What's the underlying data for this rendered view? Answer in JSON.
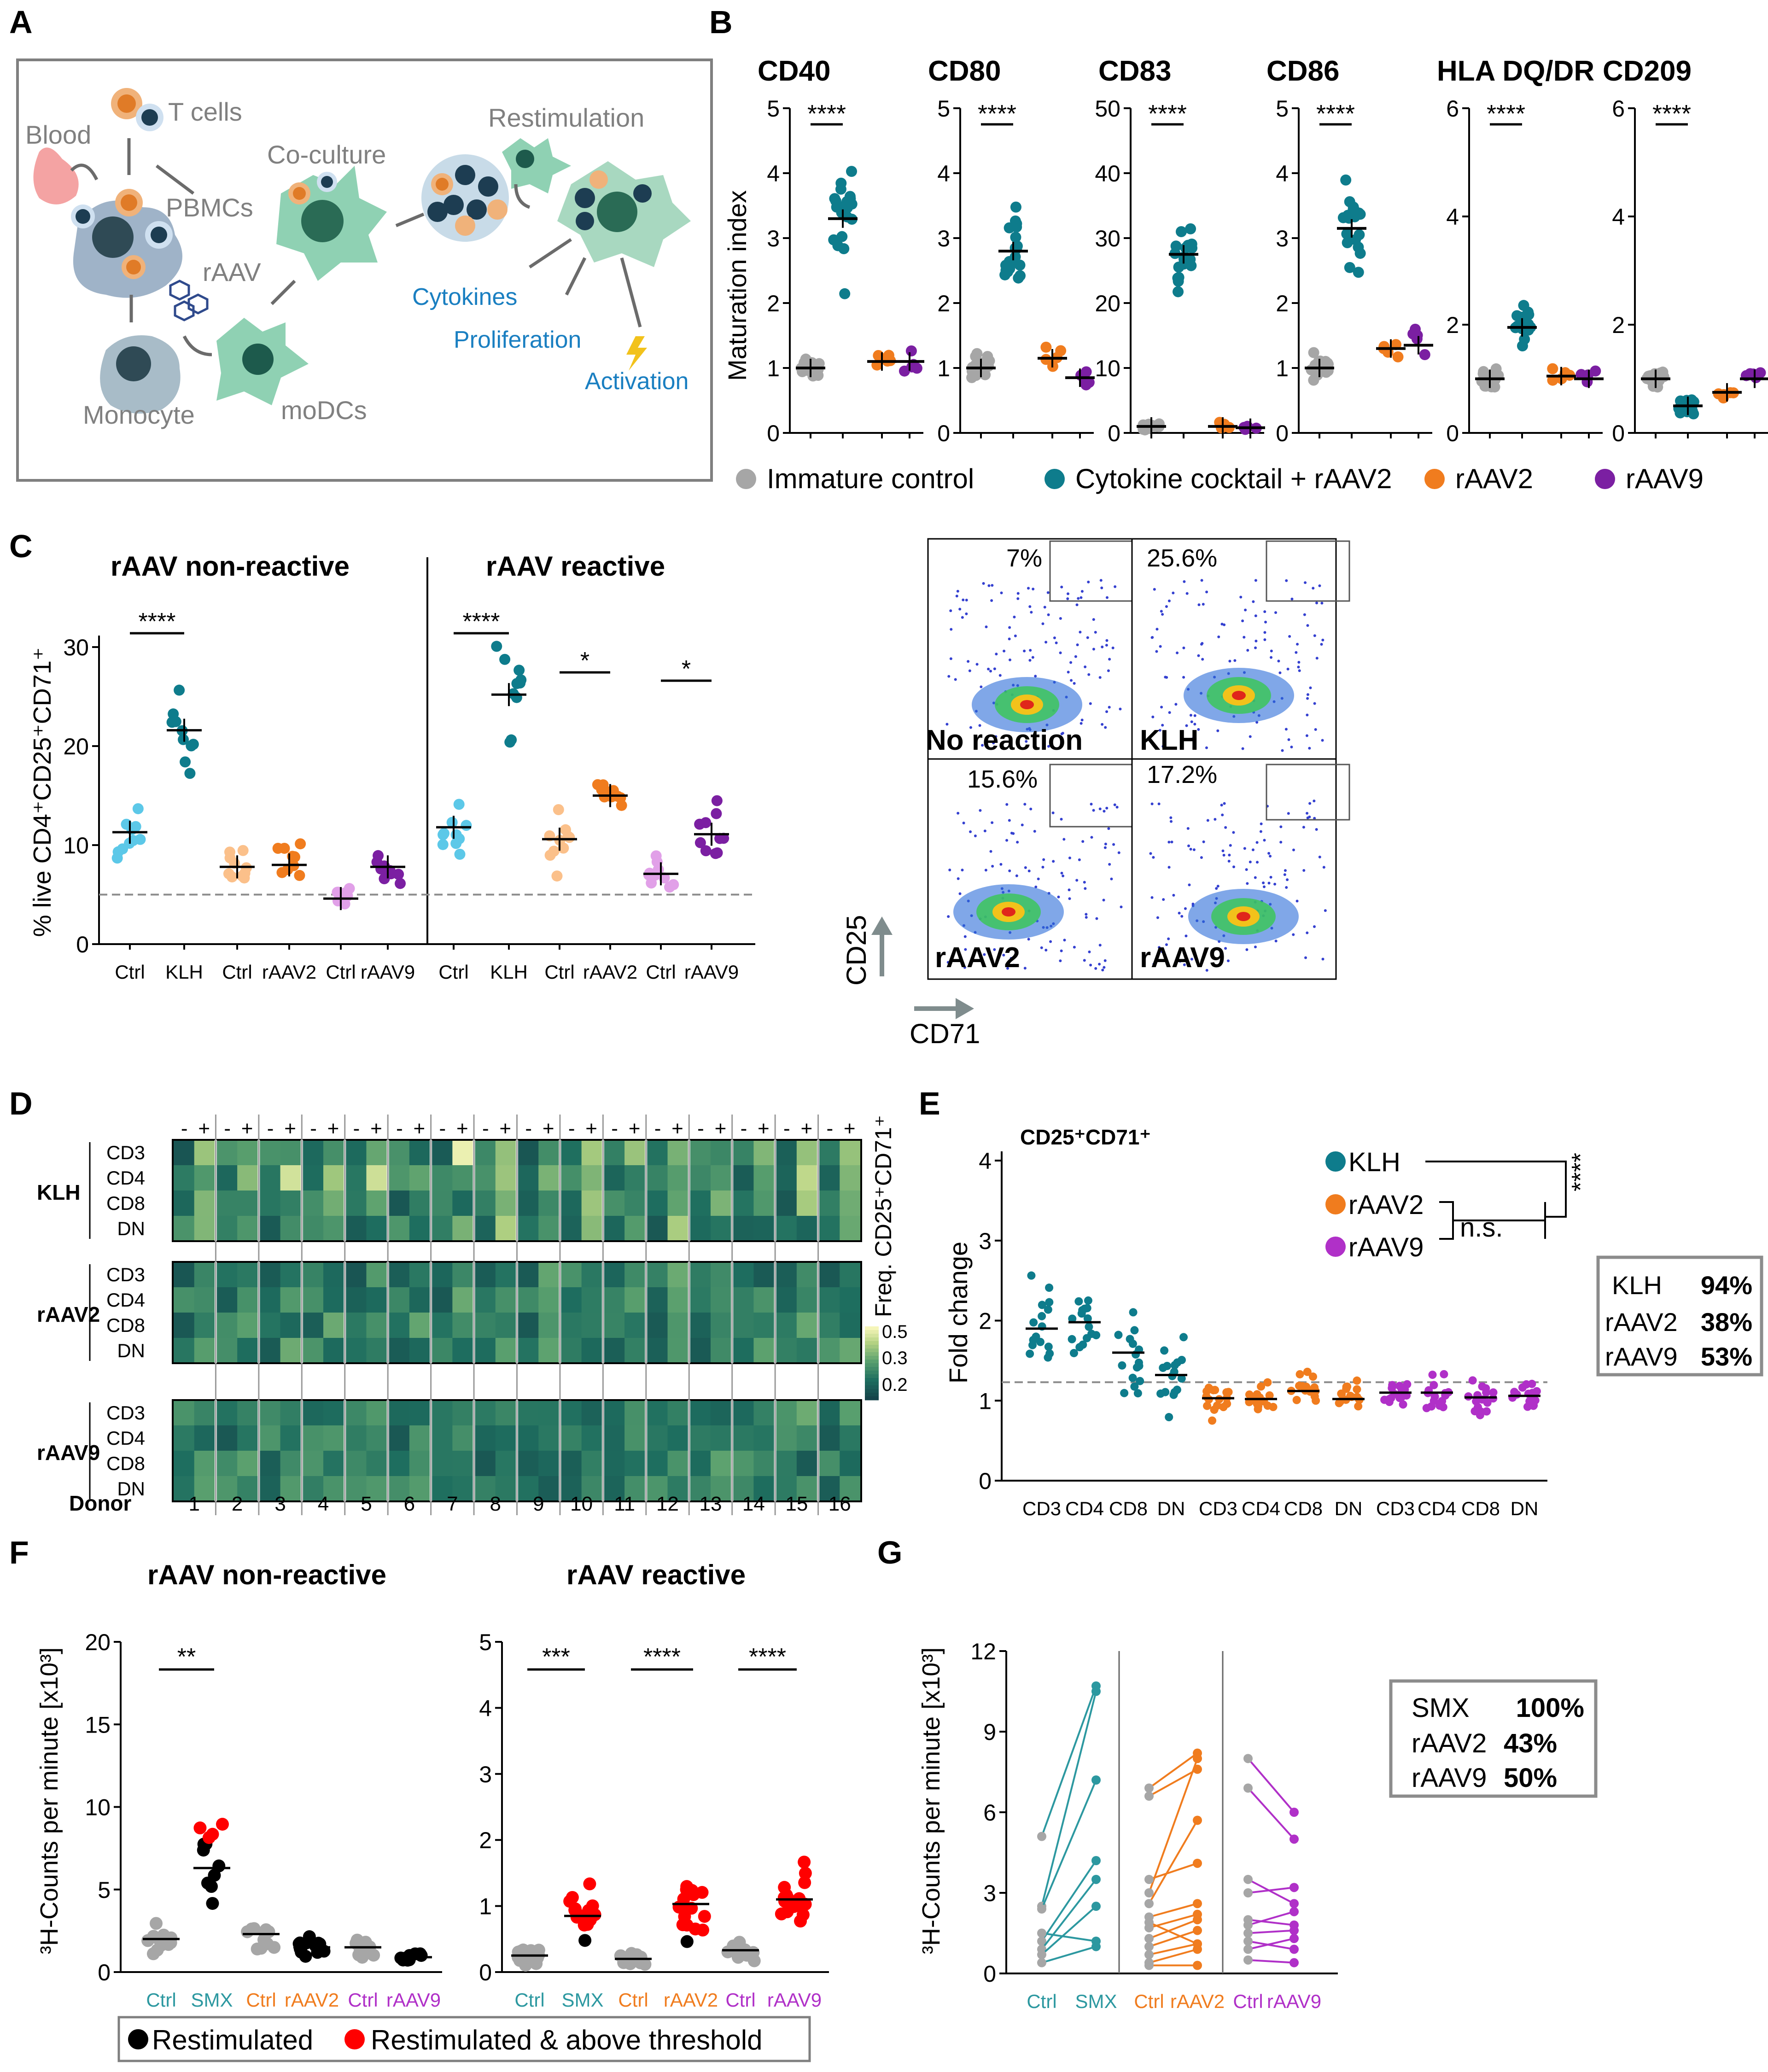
{
  "panel_letters": [
    "A",
    "B",
    "C",
    "D",
    "E",
    "F",
    "G"
  ],
  "colors": {
    "immature": "#a6a6a6",
    "cocktail": "#0e7c8c",
    "raav2": "#f07c1e",
    "raav9": "#7b1fa2",
    "ctrl_c": "#5cc8e8",
    "raav2_ctrl": "#fbc08a",
    "raav9_ctrl": "#e1a0e8",
    "restim": "#000000",
    "above": "#ff0000",
    "teal_text": "#2c98a0",
    "orange_text": "#f07c1e",
    "purple_text": "#b030c8"
  },
  "panelA": {
    "labels": {
      "blood": "Blood",
      "tcells": "T cells",
      "pbmcs": "PBMCs",
      "coculture": "Co-culture",
      "restimulation": "Restimulation",
      "raav": "rAAV",
      "monocyte": "Monocyte",
      "modcs": "moDCs",
      "cytokines": "Cytokines",
      "proliferation": "Proliferation",
      "activation": "Activation"
    }
  },
  "panelB": {
    "ylabel": "Maturation index",
    "legend": [
      "Immature control",
      "Cytokine cocktail + rAAV2",
      "rAAV2",
      "rAAV9"
    ],
    "significance": "****",
    "chart_data": [
      {
        "type": "scatter",
        "title": "CD40",
        "ylim": [
          0,
          5
        ],
        "yticks": [
          0,
          1,
          2,
          3,
          4,
          5
        ],
        "groups": [
          "Immature control",
          "Cytokine cocktail + rAAV2",
          "rAAV2",
          "rAAV9"
        ],
        "means": [
          1.0,
          3.3,
          1.1,
          1.1
        ]
      },
      {
        "type": "scatter",
        "title": "CD80",
        "ylim": [
          0,
          5
        ],
        "yticks": [
          0,
          1,
          2,
          3,
          4,
          5
        ],
        "groups": [
          "Immature control",
          "Cytokine cocktail + rAAV2",
          "rAAV2",
          "rAAV9"
        ],
        "means": [
          1.0,
          2.8,
          1.15,
          0.85
        ]
      },
      {
        "type": "scatter",
        "title": "CD83",
        "ylim": [
          0,
          50
        ],
        "yticks": [
          0,
          10,
          20,
          30,
          40,
          50
        ],
        "groups": [
          "Immature control",
          "Cytokine cocktail + rAAV2",
          "rAAV2",
          "rAAV9"
        ],
        "means": [
          1.0,
          27.5,
          1.0,
          0.8
        ]
      },
      {
        "type": "scatter",
        "title": "CD86",
        "ylim": [
          0,
          5
        ],
        "yticks": [
          0,
          1,
          2,
          3,
          4,
          5
        ],
        "groups": [
          "Immature control",
          "Cytokine cocktail + rAAV2",
          "rAAV2",
          "rAAV9"
        ],
        "means": [
          1.0,
          3.15,
          1.3,
          1.35
        ]
      },
      {
        "type": "scatter",
        "title": "HLA DQ/DR",
        "ylim": [
          0,
          6
        ],
        "yticks": [
          0,
          2,
          4,
          6
        ],
        "groups": [
          "Immature control",
          "Cytokine cocktail + rAAV2",
          "rAAV2",
          "rAAV9"
        ],
        "means": [
          1.0,
          1.95,
          1.05,
          1.0
        ]
      },
      {
        "type": "scatter",
        "title": "CD209",
        "ylim": [
          0,
          6
        ],
        "yticks": [
          0,
          2,
          4,
          6
        ],
        "groups": [
          "Immature control",
          "Cytokine cocktail + rAAV2",
          "rAAV2",
          "rAAV9"
        ],
        "means": [
          1.0,
          0.5,
          0.75,
          1.0
        ]
      }
    ]
  },
  "panelC": {
    "ylabel": "% live CD4⁺CD25⁺CD71⁺",
    "sub_non": "rAAV non-reactive",
    "sub_re": "rAAV reactive",
    "flow_labels": [
      "No reaction",
      "KLH",
      "rAAV2",
      "rAAV9"
    ],
    "flow_pcts": [
      "7%",
      "25.6%",
      "15.6%",
      "17.2%"
    ],
    "flow_y_axis": "CD25",
    "flow_x_axis": "CD71",
    "chart_data": {
      "type": "scatter",
      "ylim": [
        0,
        30
      ],
      "yticks": [
        0,
        10,
        20,
        30
      ],
      "threshold": 5,
      "categories": [
        "Ctrl",
        "KLH",
        "Ctrl",
        "rAAV2",
        "Ctrl",
        "rAAV9",
        "Ctrl",
        "KLH",
        "Ctrl",
        "rAAV2",
        "Ctrl",
        "rAAV9"
      ],
      "means": [
        11.3,
        21.6,
        7.8,
        8.0,
        4.6,
        7.8,
        11.8,
        25.2,
        10.6,
        15.0,
        7.1,
        11.1
      ],
      "significance": [
        "****",
        "****",
        "*",
        "*"
      ]
    }
  },
  "panelD": {
    "rows_label": [
      "KLH",
      "rAAV2",
      "rAAV9"
    ],
    "row_markers": [
      "CD3",
      "CD4",
      "CD8",
      "DN"
    ],
    "donor_label": "Donor",
    "donors": [
      "1",
      "2",
      "3",
      "4",
      "5",
      "6",
      "7",
      "8",
      "9",
      "10",
      "11",
      "12",
      "13",
      "14",
      "15",
      "16"
    ],
    "minus": "-",
    "plus": "+",
    "colorbar_title": "Freq. CD25⁺CD71⁺",
    "colorbar_ticks": [
      "0.5",
      "0.3",
      "0.2"
    ]
  },
  "panelE": {
    "title": "CD25⁺CD71⁺",
    "ylabel": "Fold change",
    "legend": [
      "KLH",
      "rAAV2",
      "rAAV9"
    ],
    "ns": "n.s.",
    "sig": "****",
    "box": [
      {
        "name": "KLH",
        "pct": "94%"
      },
      {
        "name": "rAAV2",
        "pct": "38%"
      },
      {
        "name": "rAAV9",
        "pct": "53%"
      }
    ],
    "chart_data": {
      "type": "scatter",
      "ylim": [
        0,
        4
      ],
      "yticks": [
        0,
        1,
        2,
        3,
        4
      ],
      "threshold": 1.23,
      "categories": [
        "CD3",
        "CD4",
        "CD8",
        "DN",
        "CD3",
        "CD4",
        "CD8",
        "DN",
        "CD3",
        "CD4",
        "CD8",
        "DN"
      ],
      "medians": [
        1.9,
        1.98,
        1.6,
        1.32,
        1.03,
        1.02,
        1.12,
        1.02,
        1.1,
        1.1,
        1.04,
        1.06
      ]
    }
  },
  "panelF": {
    "ylabel": "³H-Counts per minute [x10³]",
    "sub_non": "rAAV non-reactive",
    "sub_re": "rAAV reactive",
    "legend": [
      "Restimulated",
      "Restimulated & above threshold"
    ],
    "chart_data": [
      {
        "type": "scatter",
        "ylim": [
          0,
          20
        ],
        "yticks": [
          0,
          5,
          10,
          15,
          20
        ],
        "categories": [
          "Ctrl",
          "SMX",
          "Ctrl",
          "rAAV2",
          "Ctrl",
          "rAAV9"
        ],
        "medians": [
          2.0,
          6.3,
          2.3,
          1.5,
          1.5,
          0.9
        ],
        "significance": [
          "**"
        ]
      },
      {
        "type": "scatter",
        "ylim": [
          0,
          5
        ],
        "yticks": [
          0,
          1,
          2,
          3,
          4,
          5
        ],
        "categories": [
          "Ctrl",
          "SMX",
          "Ctrl",
          "rAAV2",
          "Ctrl",
          "rAAV9"
        ],
        "medians": [
          0.25,
          0.85,
          0.2,
          1.03,
          0.33,
          1.1
        ],
        "significance": [
          "***",
          "****",
          "****"
        ]
      }
    ]
  },
  "panelG": {
    "ylabel": "³H-Counts per minute [x10³]",
    "box": [
      {
        "name": "SMX",
        "pct": "100%"
      },
      {
        "name": "rAAV2",
        "pct": "43%"
      },
      {
        "name": "rAAV9",
        "pct": "50%"
      }
    ],
    "chart_data": {
      "type": "line",
      "ylim": [
        0,
        12
      ],
      "yticks": [
        0,
        3,
        6,
        9,
        12
      ],
      "categories": [
        "Ctrl",
        "SMX",
        "Ctrl",
        "rAAV2",
        "Ctrl",
        "rAAV9"
      ],
      "pairs_smx": [
        [
          5.1,
          10.7
        ],
        [
          2.5,
          10.5
        ],
        [
          2.4,
          7.2
        ],
        [
          1.2,
          4.2
        ],
        [
          0.9,
          3.5
        ],
        [
          0.7,
          2.5
        ],
        [
          1.5,
          1.2
        ],
        [
          0.4,
          1.0
        ]
      ],
      "pairs_raav2": [
        [
          6.9,
          8.2
        ],
        [
          6.6,
          7.6
        ],
        [
          3.0,
          8.0
        ],
        [
          2.6,
          5.7
        ],
        [
          2.1,
          2.6
        ],
        [
          1.7,
          2.2
        ],
        [
          1.3,
          2.0
        ],
        [
          1.0,
          1.6
        ],
        [
          0.7,
          1.1
        ],
        [
          0.4,
          0.9
        ],
        [
          3.5,
          4.1
        ],
        [
          1.9,
          1.1
        ],
        [
          0.3,
          0.3
        ]
      ],
      "pairs_raav9": [
        [
          8.0,
          6.0
        ],
        [
          6.9,
          5.0
        ],
        [
          3.5,
          2.6
        ],
        [
          3.0,
          3.2
        ],
        [
          2.0,
          1.8
        ],
        [
          1.5,
          1.6
        ],
        [
          1.2,
          0.9
        ],
        [
          0.9,
          1.3
        ],
        [
          0.5,
          0.4
        ],
        [
          1.8,
          2.3
        ]
      ]
    }
  }
}
